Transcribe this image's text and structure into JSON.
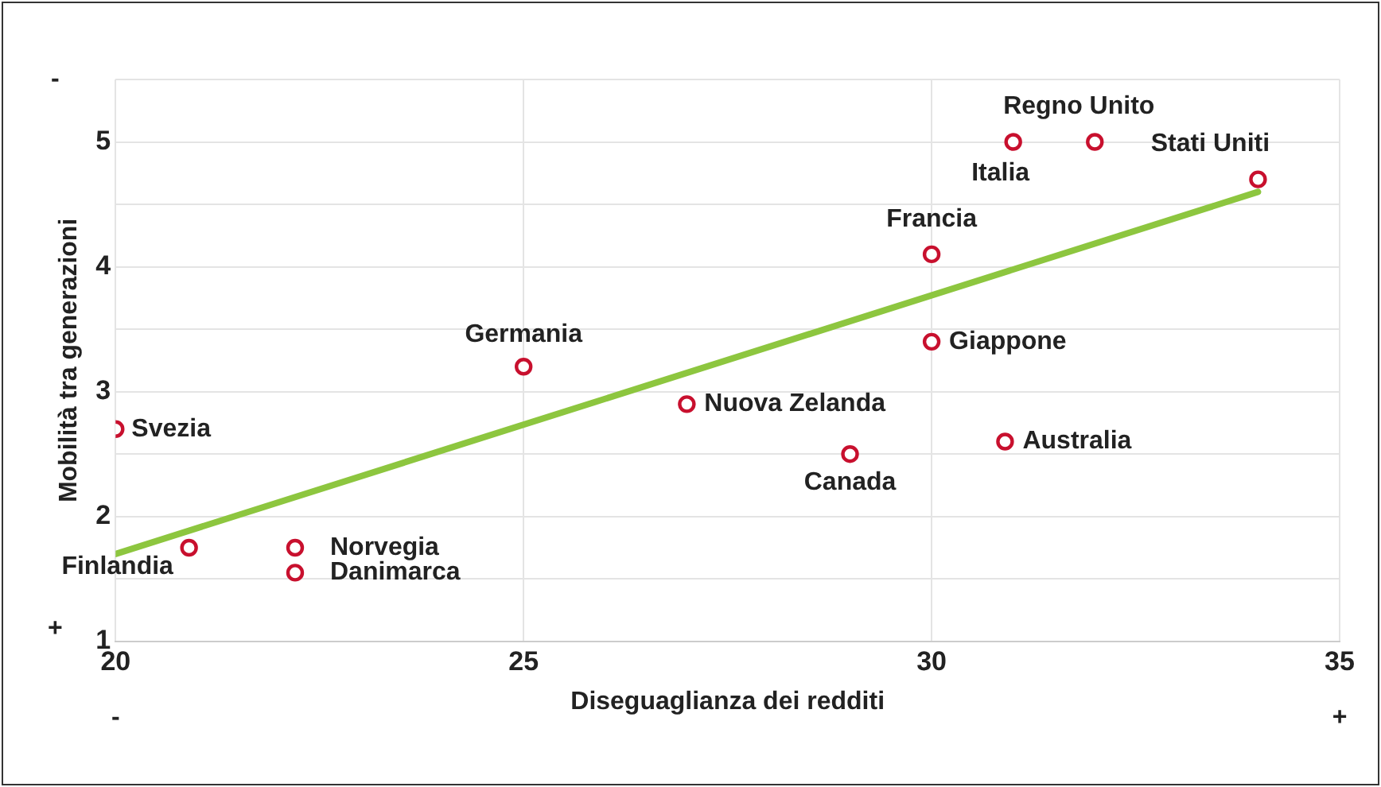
{
  "chart_data": {
    "type": "scatter",
    "xlabel": "Diseguaglianza dei redditi",
    "ylabel": "Mobilità tra generazioni",
    "xlim": [
      20,
      35
    ],
    "xticks": [
      20,
      25,
      30,
      35
    ],
    "ylim": [
      1,
      5.5
    ],
    "yticks": [
      1,
      {
        "value": 1.5,
        "label": null
      },
      2,
      {
        "value": 2.5,
        "label": null
      },
      3,
      {
        "value": 3.5,
        "label": null
      },
      4,
      {
        "value": 4.5,
        "label": null
      },
      5,
      {
        "value": 5.5,
        "label": null
      }
    ],
    "grid": true,
    "legend": false,
    "series": [
      {
        "type": "scatter",
        "marker": "circle",
        "color": "#c8102e",
        "x": [
          20,
          20.9,
          22.2,
          22.2,
          25,
          27,
          29,
          30,
          30,
          30.9,
          31,
          32,
          34
        ],
        "values": [
          2.7,
          1.75,
          1.75,
          1.55,
          3.2,
          2.9,
          2.5,
          3.4,
          4.1,
          2.6,
          5,
          5,
          4.7
        ]
      },
      {
        "type": "line",
        "marker": "none",
        "color": "#8dc63f",
        "x": [
          20,
          34
        ],
        "values": [
          1.7,
          4.6
        ]
      }
    ],
    "annotations": [
      {
        "text": "Svezia",
        "x": 20,
        "y": 2.7
      },
      {
        "text": "Finlandia",
        "x": 20.9,
        "y": 1.75
      },
      {
        "text": "Norvegia",
        "x": 22.2,
        "y": 1.75
      },
      {
        "text": "Danimarca",
        "x": 22.2,
        "y": 1.55
      },
      {
        "text": "Germania",
        "x": 25,
        "y": 3.2
      },
      {
        "text": "Nuova Zelanda",
        "x": 27,
        "y": 2.9
      },
      {
        "text": "Canada",
        "x": 29,
        "y": 2.5
      },
      {
        "text": "Giappone",
        "x": 30,
        "y": 3.4
      },
      {
        "text": "Francia",
        "x": 30,
        "y": 4.1
      },
      {
        "text": "Australia",
        "x": 30.9,
        "y": 2.6
      },
      {
        "text": "Italia",
        "x": 31,
        "y": 5
      },
      {
        "text": "Regno Unito",
        "x": 32,
        "y": 5
      },
      {
        "text": "Stati Uniti",
        "x": 34,
        "y": 4.7
      },
      "-",
      "+",
      "-",
      "+"
    ]
  }
}
